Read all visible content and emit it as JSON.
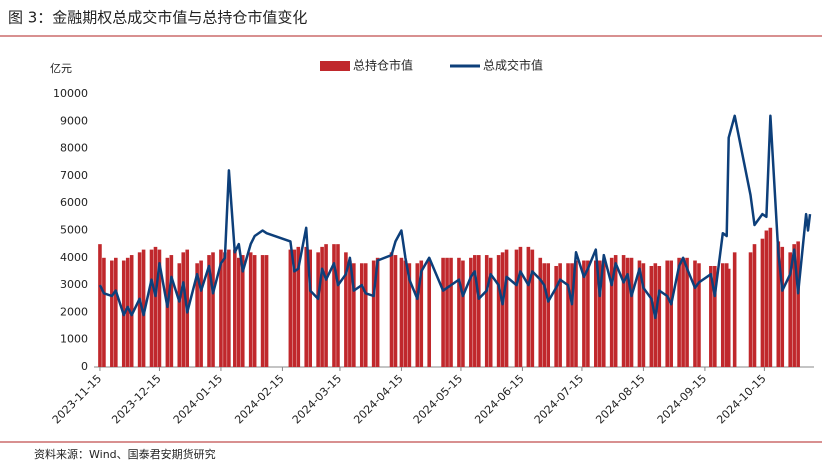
{
  "chart_data": {
    "type": "combo",
    "title": "图 3：金融期权总成交市值与总持仓市值变化",
    "y_unit": "亿元",
    "source": "资料来源：Wind、国泰君安期货研究",
    "x": [
      "2023-11-15",
      "2023-11-17",
      "2023-11-21",
      "2023-11-23",
      "2023-11-27",
      "2023-11-29",
      "2023-12-01",
      "2023-12-05",
      "2023-12-07",
      "2023-12-11",
      "2023-12-13",
      "2023-12-15",
      "2023-12-19",
      "2023-12-21",
      "2023-12-25",
      "2023-12-27",
      "2023-12-29",
      "2024-01-03",
      "2024-01-05",
      "2024-01-09",
      "2024-01-11",
      "2024-01-15",
      "2024-01-17",
      "2024-01-19",
      "2024-01-22",
      "2024-01-24",
      "2024-01-26",
      "2024-01-30",
      "2024-02-01",
      "2024-02-05",
      "2024-02-07",
      "2024-02-19",
      "2024-02-21",
      "2024-02-23",
      "2024-02-27",
      "2024-02-29",
      "2024-03-04",
      "2024-03-06",
      "2024-03-08",
      "2024-03-12",
      "2024-03-14",
      "2024-03-18",
      "2024-03-20",
      "2024-03-22",
      "2024-03-26",
      "2024-03-28",
      "2024-04-01",
      "2024-04-03",
      "2024-04-10",
      "2024-04-12",
      "2024-04-15",
      "2024-04-17",
      "2024-04-19",
      "2024-04-23",
      "2024-04-25",
      "2024-04-29",
      "2024-05-06",
      "2024-05-08",
      "2024-05-10",
      "2024-05-14",
      "2024-05-16",
      "2024-05-20",
      "2024-05-22",
      "2024-05-24",
      "2024-05-28",
      "2024-05-30",
      "2024-06-03",
      "2024-06-05",
      "2024-06-07",
      "2024-06-12",
      "2024-06-14",
      "2024-06-18",
      "2024-06-20",
      "2024-06-24",
      "2024-06-26",
      "2024-06-28",
      "2024-07-02",
      "2024-07-04",
      "2024-07-08",
      "2024-07-10",
      "2024-07-12",
      "2024-07-16",
      "2024-07-18",
      "2024-07-22",
      "2024-07-24",
      "2024-07-26",
      "2024-07-30",
      "2024-08-01",
      "2024-08-05",
      "2024-08-07",
      "2024-08-09",
      "2024-08-13",
      "2024-08-15",
      "2024-08-19",
      "2024-08-21",
      "2024-08-23",
      "2024-08-27",
      "2024-08-29",
      "2024-09-02",
      "2024-09-04",
      "2024-09-06",
      "2024-09-10",
      "2024-09-12",
      "2024-09-18",
      "2024-09-20",
      "2024-09-24",
      "2024-09-26",
      "2024-09-27",
      "2024-09-30",
      "2024-10-08",
      "2024-10-10",
      "2024-10-14",
      "2024-10-16",
      "2024-10-18",
      "2024-10-22",
      "2024-10-24",
      "2024-10-28",
      "2024-10-30",
      "2024-11-01",
      "2024-11-05",
      "2024-11-06",
      "2024-11-07"
    ],
    "series": [
      {
        "name": "总持仓市值",
        "type": "bar",
        "color": "#c0282c",
        "values": [
          4500,
          4000,
          3900,
          4000,
          3900,
          4000,
          4100,
          4200,
          4300,
          4300,
          4400,
          4300,
          4000,
          4100,
          3800,
          4200,
          4300,
          3800,
          3900,
          4100,
          4200,
          4300,
          4200,
          4300,
          4300,
          4000,
          4100,
          4200,
          4100,
          4100,
          4100,
          4300,
          4300,
          4400,
          4400,
          4300,
          4200,
          4400,
          4500,
          4500,
          4500,
          4200,
          3900,
          3800,
          3800,
          3800,
          3900,
          4000,
          4200,
          4100,
          4000,
          3900,
          3800,
          3800,
          3900,
          3900,
          4000,
          4000,
          4000,
          4000,
          3900,
          4000,
          4100,
          4100,
          4100,
          4000,
          4100,
          4200,
          4300,
          4300,
          4400,
          4400,
          4300,
          4000,
          3800,
          3800,
          3700,
          3800,
          3800,
          3800,
          3900,
          3900,
          3900,
          3900,
          3900,
          3900,
          4000,
          4100,
          4100,
          4000,
          4000,
          3900,
          3800,
          3700,
          3800,
          3700,
          3900,
          3900,
          4000,
          4000,
          4000,
          3900,
          3800,
          3700,
          3700,
          3800,
          3800,
          3600,
          4200,
          4200,
          4500,
          4700,
          5000,
          5100,
          4600,
          4400,
          4200,
          4500,
          4600,
          null,
          null,
          null
        ]
      },
      {
        "name": "总成交市值",
        "type": "line",
        "color": "#0d3f7a",
        "values": [
          3000,
          2700,
          2600,
          2800,
          1900,
          2200,
          1900,
          2500,
          1900,
          3200,
          2600,
          3800,
          2200,
          3300,
          2400,
          3100,
          2000,
          3400,
          2800,
          3700,
          2700,
          3800,
          4000,
          7200,
          4200,
          4500,
          3500,
          4500,
          4800,
          5000,
          4900,
          4600,
          3500,
          3600,
          5100,
          2800,
          2500,
          3600,
          3200,
          3800,
          3000,
          3400,
          4000,
          2800,
          3000,
          2700,
          2600,
          3900,
          4100,
          4600,
          5000,
          4000,
          3200,
          2500,
          3500,
          4000,
          2800,
          2900,
          3000,
          3200,
          2600,
          3300,
          3500,
          2500,
          2800,
          3400,
          3000,
          2300,
          3300,
          3000,
          3500,
          3000,
          3500,
          3200,
          3000,
          2400,
          2900,
          3200,
          3000,
          2300,
          4200,
          3300,
          3600,
          4300,
          2600,
          4100,
          3000,
          3800,
          3100,
          3400,
          2600,
          3600,
          2900,
          2500,
          1800,
          2800,
          2600,
          2300,
          3700,
          4000,
          3600,
          2900,
          3100,
          3400,
          2600,
          4900,
          4800,
          8400,
          9200,
          6300,
          5200,
          5600,
          5500,
          9200,
          4200,
          2800,
          3400,
          4300,
          2700,
          5600,
          5000,
          5600
        ]
      }
    ],
    "xlim": [
      "2023-11-12",
      "2024-11-09"
    ],
    "xticks": [
      "2023-11-15",
      "2023-12-15",
      "2024-01-15",
      "2024-02-15",
      "2024-03-15",
      "2024-04-15",
      "2024-05-15",
      "2024-06-15",
      "2024-07-15",
      "2024-08-15",
      "2024-09-15",
      "2024-10-15"
    ],
    "ylim": [
      0,
      10000
    ],
    "yticks": [
      0,
      1000,
      2000,
      3000,
      4000,
      5000,
      6000,
      7000,
      8000,
      9000,
      10000
    ],
    "legend": "top"
  }
}
